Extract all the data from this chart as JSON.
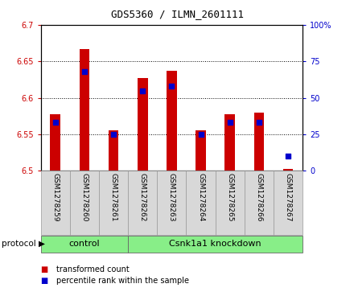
{
  "title": "GDS5360 / ILMN_2601111",
  "samples": [
    "GSM1278259",
    "GSM1278260",
    "GSM1278261",
    "GSM1278262",
    "GSM1278263",
    "GSM1278264",
    "GSM1278265",
    "GSM1278266",
    "GSM1278267"
  ],
  "transformed_count": [
    6.578,
    6.667,
    6.555,
    6.627,
    6.637,
    6.555,
    6.578,
    6.58,
    6.503
  ],
  "percentile_rank": [
    33,
    68,
    25,
    55,
    58,
    25,
    33,
    33,
    10
  ],
  "ylim_left": [
    6.5,
    6.7
  ],
  "ylim_right": [
    0,
    100
  ],
  "yticks_left": [
    6.5,
    6.55,
    6.6,
    6.65,
    6.7
  ],
  "yticks_right": [
    0,
    25,
    50,
    75,
    100
  ],
  "ytick_labels_left": [
    "6.5",
    "6.55",
    "6.6",
    "6.65",
    "6.7"
  ],
  "ytick_labels_right": [
    "0",
    "25",
    "50",
    "75",
    "100%"
  ],
  "bar_color": "#cc0000",
  "dot_color": "#0000cc",
  "bar_width": 0.35,
  "dot_size": 18,
  "protocol_groups": [
    {
      "label": "control",
      "start": 0,
      "end": 3
    },
    {
      "label": "Csnk1a1 knockdown",
      "start": 3,
      "end": 9
    }
  ],
  "protocol_bg_color": "#88ee88",
  "sample_bg_color": "#d8d8d8",
  "legend_items": [
    {
      "label": "transformed count",
      "color": "#cc0000"
    },
    {
      "label": "percentile rank within the sample",
      "color": "#0000cc"
    }
  ],
  "grid_color": "#000000",
  "title_fontsize": 9,
  "axis_fontsize": 7,
  "sample_fontsize": 6.5,
  "proto_fontsize": 8
}
